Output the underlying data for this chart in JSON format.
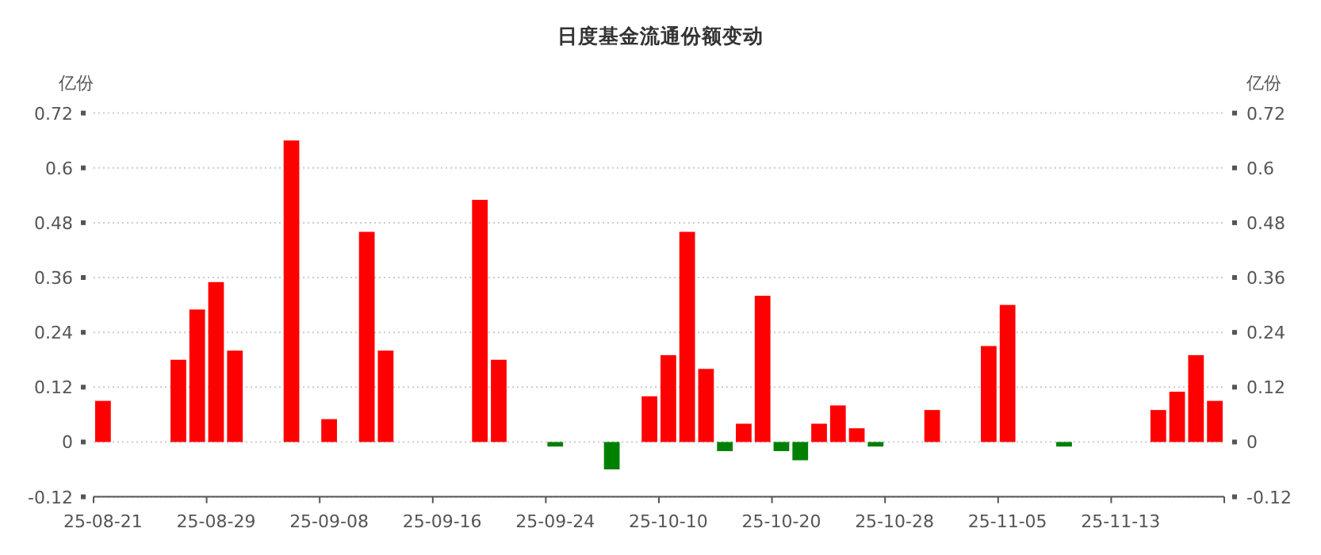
{
  "chart_data": {
    "type": "bar",
    "title": "日度基金流通份额变动",
    "ylabel": "亿份",
    "y2label": "亿份",
    "categories": [
      "25-08-21",
      null,
      null,
      null,
      null,
      null,
      "25-08-29",
      null,
      null,
      null,
      null,
      null,
      "25-09-08",
      null,
      null,
      null,
      null,
      null,
      "25-09-16",
      null,
      null,
      null,
      null,
      null,
      "25-09-24",
      null,
      null,
      null,
      null,
      null,
      "25-10-10",
      null,
      null,
      null,
      null,
      null,
      "25-10-20",
      null,
      null,
      null,
      null,
      null,
      "25-10-28",
      null,
      null,
      null,
      null,
      null,
      "25-11-05",
      null,
      null,
      null,
      null,
      null,
      "25-11-13",
      null,
      null,
      null,
      null,
      null
    ],
    "values": [
      0.09,
      0,
      0,
      0,
      0.18,
      0.29,
      0.35,
      0.2,
      0,
      0,
      0.66,
      0,
      0.05,
      0,
      0.46,
      0.2,
      0,
      0,
      0,
      0,
      0.53,
      0.18,
      0,
      0,
      -0.01,
      0,
      0,
      -0.06,
      0,
      0.1,
      0.19,
      0.46,
      0.16,
      -0.02,
      0.04,
      0.32,
      -0.02,
      -0.04,
      0.04,
      0.08,
      0.03,
      -0.01,
      0,
      0,
      0.07,
      0,
      0,
      0.21,
      0.3,
      0,
      0,
      -0.01,
      0,
      0,
      0,
      0,
      0.07,
      0.11,
      0.19,
      0.09
    ],
    "colors": [
      "#ff0000",
      "#ff0000",
      "#ff0000",
      "#ff0000",
      "#ff0000",
      "#ff0000",
      "#ff0000",
      "#ff0000",
      "#ff0000",
      "#ff0000",
      "#ff0000",
      "#ff0000",
      "#ff0000",
      "#ff0000",
      "#ff0000",
      "#ff0000",
      "#ff0000",
      "#ff0000",
      "#ff0000",
      "#ff0000",
      "#ff0000",
      "#ff0000",
      "#ff0000",
      "#ff0000",
      "#008000",
      "#ff0000",
      "#ff0000",
      "#008000",
      "#ff0000",
      "#ff0000",
      "#ff0000",
      "#ff0000",
      "#ff0000",
      "#008000",
      "#ff0000",
      "#ff0000",
      "#008000",
      "#008000",
      "#ff0000",
      "#ff0000",
      "#ff0000",
      "#008000",
      "#ff0000",
      "#ff0000",
      "#ff0000",
      "#ff0000",
      "#ff0000",
      "#ff0000",
      "#ff0000",
      "#ff0000",
      "#ff0000",
      "#008000",
      "#ff0000",
      "#ff0000",
      "#ff0000",
      "#ff0000",
      "#ff0000",
      "#ff0000",
      "#ff0000",
      "#ff0000"
    ],
    "ylim": [
      -0.12,
      0.72
    ],
    "yticks": [
      -0.12,
      0,
      0.12,
      0.24,
      0.36,
      0.48,
      0.6,
      0.72
    ],
    "y2lim": [
      -0.12,
      0.72
    ],
    "y2ticks": [
      -0.12,
      0,
      0.12,
      0.24,
      0.36,
      0.48,
      0.6,
      0.72
    ],
    "grid": "y"
  }
}
